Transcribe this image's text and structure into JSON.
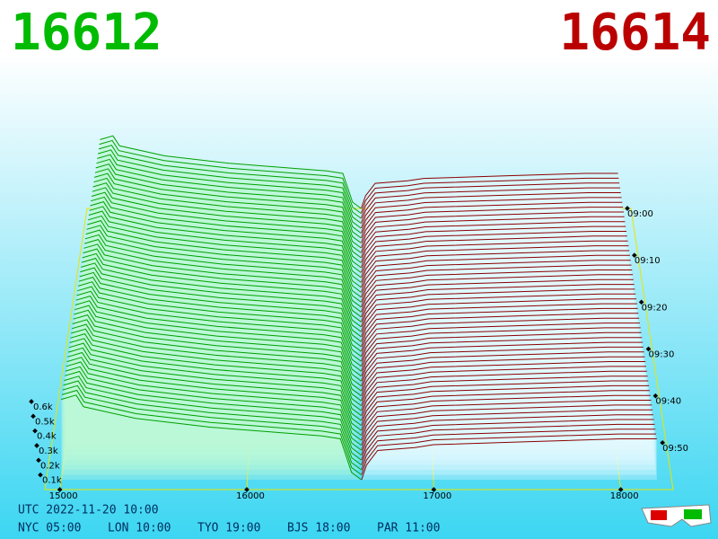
{
  "header": {
    "bid": "16612",
    "ask": "16614"
  },
  "footer": {
    "utc": "UTC 2022-11-20 10:00",
    "zones": [
      "NYC 05:00",
      "LON 10:00",
      "TYO 19:00",
      "BJS 18:00",
      "PAR 11:00"
    ]
  },
  "chart_data": {
    "type": "depth3d",
    "xlim": [
      14920,
      18280
    ],
    "xticks": [
      15000,
      16000,
      17000,
      18000
    ],
    "ylim": [
      0,
      0.6
    ],
    "yticks": [
      {
        "value": 0.1,
        "label": "0.1k"
      },
      {
        "value": 0.2,
        "label": "0.2k"
      },
      {
        "value": 0.3,
        "label": "0.3k"
      },
      {
        "value": 0.4,
        "label": "0.4k"
      },
      {
        "value": 0.5,
        "label": "0.5k"
      },
      {
        "value": 0.6,
        "label": "0.6k"
      }
    ],
    "zlim": [
      "09:00",
      "10:00"
    ],
    "zticks": [
      "09:00",
      "09:10",
      "09:20",
      "09:30",
      "09:40",
      "09:50"
    ],
    "grid": true,
    "series": [
      {
        "color": "#00a000",
        "x": [
          15000,
          15080,
          15120,
          15400,
          15800,
          16000,
          16400,
          16500,
          16560,
          16612
        ],
        "values": [
          0.55,
          0.58,
          0.5,
          0.42,
          0.36,
          0.34,
          0.3,
          0.28,
          0.05,
          0
        ]
      },
      {
        "color": "#8b0000",
        "x": [
          16614,
          16640,
          16700,
          16900,
          17000,
          17500,
          18000,
          18200
        ],
        "values": [
          0,
          0.1,
          0.2,
          0.22,
          0.24,
          0.26,
          0.28,
          0.28
        ]
      }
    ]
  }
}
